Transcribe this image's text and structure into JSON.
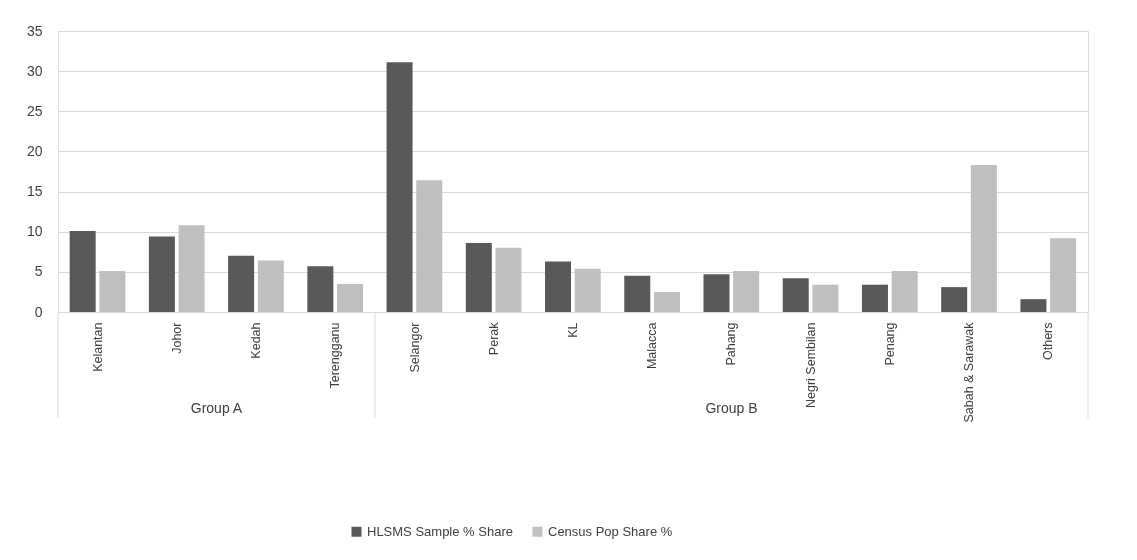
{
  "chart_data": {
    "type": "bar",
    "categories": [
      "Kelantan",
      "Johor",
      "Kedah",
      "Terengganu",
      "Selangor",
      "Perak",
      "KL",
      "Malacca",
      "Pahang",
      "Negri Sembilan",
      "Penang",
      "Sabah & Sarawak",
      "Others"
    ],
    "series": [
      {
        "name": "HLSMS Sample % Share",
        "color": "#595959",
        "values": [
          10.1,
          9.4,
          7.0,
          5.7,
          31.1,
          8.6,
          6.3,
          4.5,
          4.7,
          4.2,
          3.4,
          3.1,
          1.6
        ]
      },
      {
        "name": "Census Pop Share %",
        "color": "#bfbfbf",
        "values": [
          5.1,
          10.8,
          6.4,
          3.5,
          16.4,
          8.0,
          5.4,
          2.5,
          5.1,
          3.4,
          5.1,
          18.3,
          9.2
        ]
      }
    ],
    "ylim": [
      0,
      35
    ],
    "yticks": [
      0,
      5,
      10,
      15,
      20,
      25,
      30,
      35
    ],
    "grid": "y",
    "legend": "bottom",
    "annotations": [
      "Group A",
      "Group B"
    ]
  }
}
